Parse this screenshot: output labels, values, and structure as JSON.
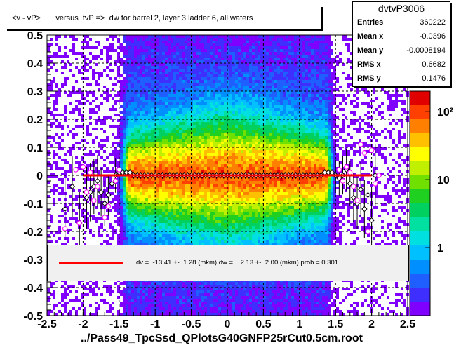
{
  "title": "<v - vP>       versus  tvP =>  dw for barrel 2, layer 3 ladder 6, all wafers",
  "stats": {
    "name": "dvtvP3006",
    "rows": [
      {
        "label": "Entries",
        "value": "360222"
      },
      {
        "label": "Mean x",
        "value": "-0.0396"
      },
      {
        "label": "Mean y",
        "value": "-0.0008194"
      },
      {
        "label": "RMS x",
        "value": "0.6682"
      },
      {
        "label": "RMS y",
        "value": "0.1476"
      }
    ]
  },
  "legend": {
    "text": "dv =  -13.41 +-  1.28 (mkm) dw =    2.13 +-  2.00 (mkm) prob = 0.301",
    "line_color": "#ff0000"
  },
  "chart_data": {
    "type": "heatmap",
    "title": "<v - vP>       versus  tvP =>  dw for barrel 2, layer 3 ladder 6, all wafers",
    "xlabel": "../Pass49_TpcSsd_QPlotsG40GNFP25rCut0.5cm.root",
    "ylabel": "",
    "xlim": [
      -2.5,
      2.5
    ],
    "ylim": [
      -0.5,
      0.5
    ],
    "x_ticks": [
      "-2.5",
      "-2",
      "-1.5",
      "-1",
      "-0.5",
      "0",
      "0.5",
      "1",
      "1.5",
      "2",
      "2.5"
    ],
    "y_ticks": [
      "-0.5",
      "-0.4",
      "-0.3",
      "-0.2",
      "-0.1",
      "0",
      "0.1",
      "0.2",
      "0.3",
      "0.4",
      "0.5"
    ],
    "grid": true,
    "z_scale": "log",
    "z_ticks": [
      "1",
      "10",
      "10²"
    ],
    "z_tick_values": [
      1,
      10,
      100
    ],
    "fit_line": {
      "x": [
        -2.0,
        2.0
      ],
      "y": [
        0.0,
        0.0
      ],
      "color": "#ff0000"
    },
    "profile_points": {
      "x": [
        -2.25,
        -2.15,
        -2.05,
        -1.95,
        -1.9,
        -1.85,
        -1.8,
        -1.75,
        -1.7,
        -1.65,
        -1.6,
        -1.55,
        -1.5,
        -1.45,
        -1.4,
        -1.35,
        -1.3,
        -1.25,
        -1.2,
        -1.15,
        -1.1,
        -1.05,
        -1.0,
        -0.95,
        -0.9,
        -0.85,
        -0.8,
        -0.75,
        -0.7,
        -0.65,
        -0.6,
        -0.55,
        -0.5,
        -0.45,
        -0.4,
        -0.35,
        -0.3,
        -0.25,
        -0.2,
        -0.15,
        -0.1,
        -0.05,
        0.0,
        0.05,
        0.1,
        0.15,
        0.2,
        0.25,
        0.3,
        0.35,
        0.4,
        0.45,
        0.5,
        0.55,
        0.6,
        0.65,
        0.7,
        0.75,
        0.8,
        0.85,
        0.9,
        0.95,
        1.0,
        1.05,
        1.1,
        1.15,
        1.2,
        1.25,
        1.3,
        1.35,
        1.4,
        1.45,
        1.5,
        1.55,
        1.6,
        1.65,
        1.7,
        1.75,
        1.8,
        1.85,
        1.9,
        1.95,
        2.0,
        2.05
      ],
      "y": [
        -0.12,
        -0.04,
        -0.17,
        -0.08,
        -0.06,
        -0.04,
        -0.02,
        -0.06,
        -0.1,
        -0.07,
        -0.03,
        0.0,
        0.01,
        0.01,
        0.01,
        0.01,
        0.0,
        0.0,
        0.0,
        0.0,
        0.0,
        0.0,
        0.0,
        0.0,
        0.0,
        0.0,
        0.0,
        0.0,
        0.0,
        0.0,
        0.0,
        0.0,
        0.0,
        0.0,
        0.0,
        0.0,
        0.0,
        0.0,
        0.0,
        0.0,
        0.0,
        0.0,
        0.0,
        0.0,
        0.0,
        0.0,
        0.0,
        0.0,
        0.0,
        0.0,
        0.0,
        0.0,
        0.0,
        0.0,
        0.0,
        0.0,
        0.0,
        0.0,
        0.0,
        0.0,
        0.0,
        0.0,
        0.0,
        0.0,
        0.0,
        0.0,
        0.0,
        0.0,
        0.0,
        0.01,
        0.01,
        0.01,
        0.0,
        -0.01,
        0.0,
        0.02,
        -0.03,
        -0.08,
        -0.1,
        -0.05,
        -0.12,
        -0.07,
        -0.16,
        0.0
      ]
    },
    "magenta_points": {
      "x": [
        -2.25,
        -2.1,
        -2.05,
        -2.0,
        -1.95,
        -1.9,
        -1.85,
        -1.8,
        -1.7,
        -1.65,
        -1.55,
        -1.5,
        1.55,
        1.6,
        1.65,
        1.7,
        1.75,
        1.8,
        1.85,
        1.9,
        1.95,
        2.0,
        2.05,
        2.1
      ],
      "y": [
        -0.19,
        0.02,
        -0.17,
        0.03,
        -0.06,
        0.01,
        -0.09,
        -0.04,
        -0.15,
        -0.11,
        -0.02,
        0.02,
        0.02,
        -0.02,
        0.03,
        0.01,
        -0.04,
        -0.09,
        0.11,
        0.08,
        -0.2,
        0.09,
        -0.03,
        0.0
      ]
    }
  }
}
